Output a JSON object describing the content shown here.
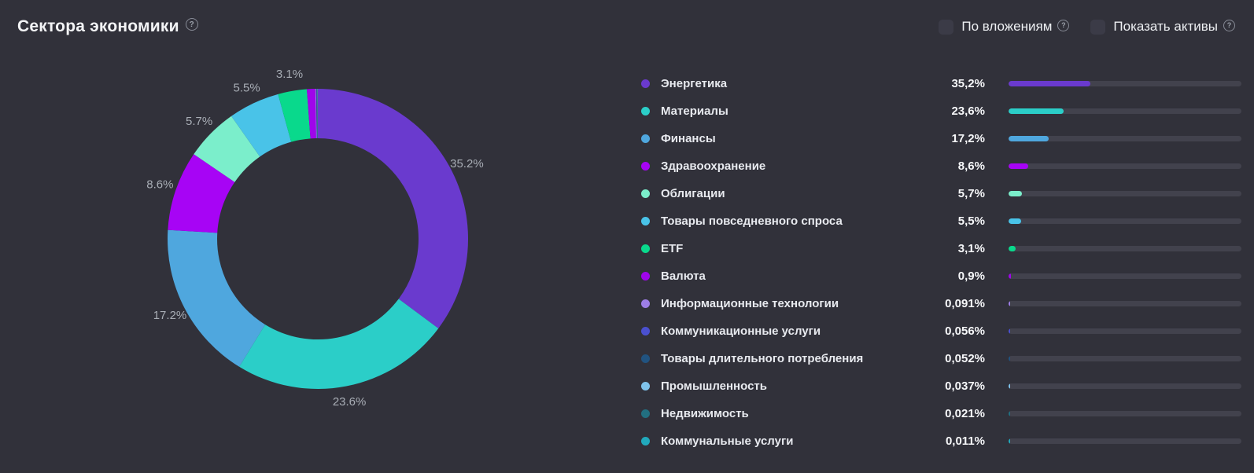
{
  "header": {
    "title": "Сектора экономики",
    "help_icon": "?",
    "toggles": [
      {
        "label": "По вложениям",
        "help_icon": "?",
        "checked": false
      },
      {
        "label": "Показать активы",
        "help_icon": "?",
        "checked": false
      }
    ]
  },
  "chart_data": {
    "type": "pie",
    "donut": true,
    "title": "Сектора экономики",
    "direction": "clockwise",
    "start_angle": "12 o'clock",
    "legend_position": "right",
    "slices": [
      {
        "label": "Энергетика",
        "value": 35.2,
        "display_value": "35,2%",
        "pie_label": "35.2%",
        "color": "#6a3ace"
      },
      {
        "label": "Материалы",
        "value": 23.6,
        "display_value": "23,6%",
        "pie_label": "23.6%",
        "color": "#2bcec8"
      },
      {
        "label": "Финансы",
        "value": 17.2,
        "display_value": "17,2%",
        "pie_label": "17.2%",
        "color": "#4fa7de"
      },
      {
        "label": "Здравоохранение",
        "value": 8.6,
        "display_value": "8,6%",
        "pie_label": "8.6%",
        "color": "#a704f5"
      },
      {
        "label": "Облигации",
        "value": 5.7,
        "display_value": "5,7%",
        "pie_label": "5.7%",
        "color": "#7beecb"
      },
      {
        "label": "Товары повседневного спроса",
        "value": 5.5,
        "display_value": "5,5%",
        "pie_label": "5.5%",
        "color": "#49c3e8"
      },
      {
        "label": "ETF",
        "value": 3.1,
        "display_value": "3,1%",
        "pie_label": "3.1%",
        "color": "#09d98c"
      },
      {
        "label": "Валюта",
        "value": 0.9,
        "display_value": "0,9%",
        "pie_label": null,
        "color": "#9f05ea"
      },
      {
        "label": "Информационные технологии",
        "value": 0.091,
        "display_value": "0,091%",
        "pie_label": null,
        "color": "#9d7ee6"
      },
      {
        "label": "Коммуникационные услуги",
        "value": 0.056,
        "display_value": "0,056%",
        "pie_label": null,
        "color": "#4a50cf"
      },
      {
        "label": "Товары длительного потребления",
        "value": 0.052,
        "display_value": "0,052%",
        "pie_label": null,
        "color": "#215380"
      },
      {
        "label": "Промышленность",
        "value": 0.037,
        "display_value": "0,037%",
        "pie_label": null,
        "color": "#7fc2ea"
      },
      {
        "label": "Недвижимость",
        "value": 0.021,
        "display_value": "0,021%",
        "pie_label": null,
        "color": "#226f80"
      },
      {
        "label": "Коммунальные услуги",
        "value": 0.011,
        "display_value": "0,011%",
        "pie_label": null,
        "color": "#21a9bc"
      }
    ]
  },
  "colors": {
    "background": "#31313a",
    "bar_track": "#42424d",
    "toggle_bg": "#3b3b47",
    "pie_label_text": "#a8adb5"
  }
}
